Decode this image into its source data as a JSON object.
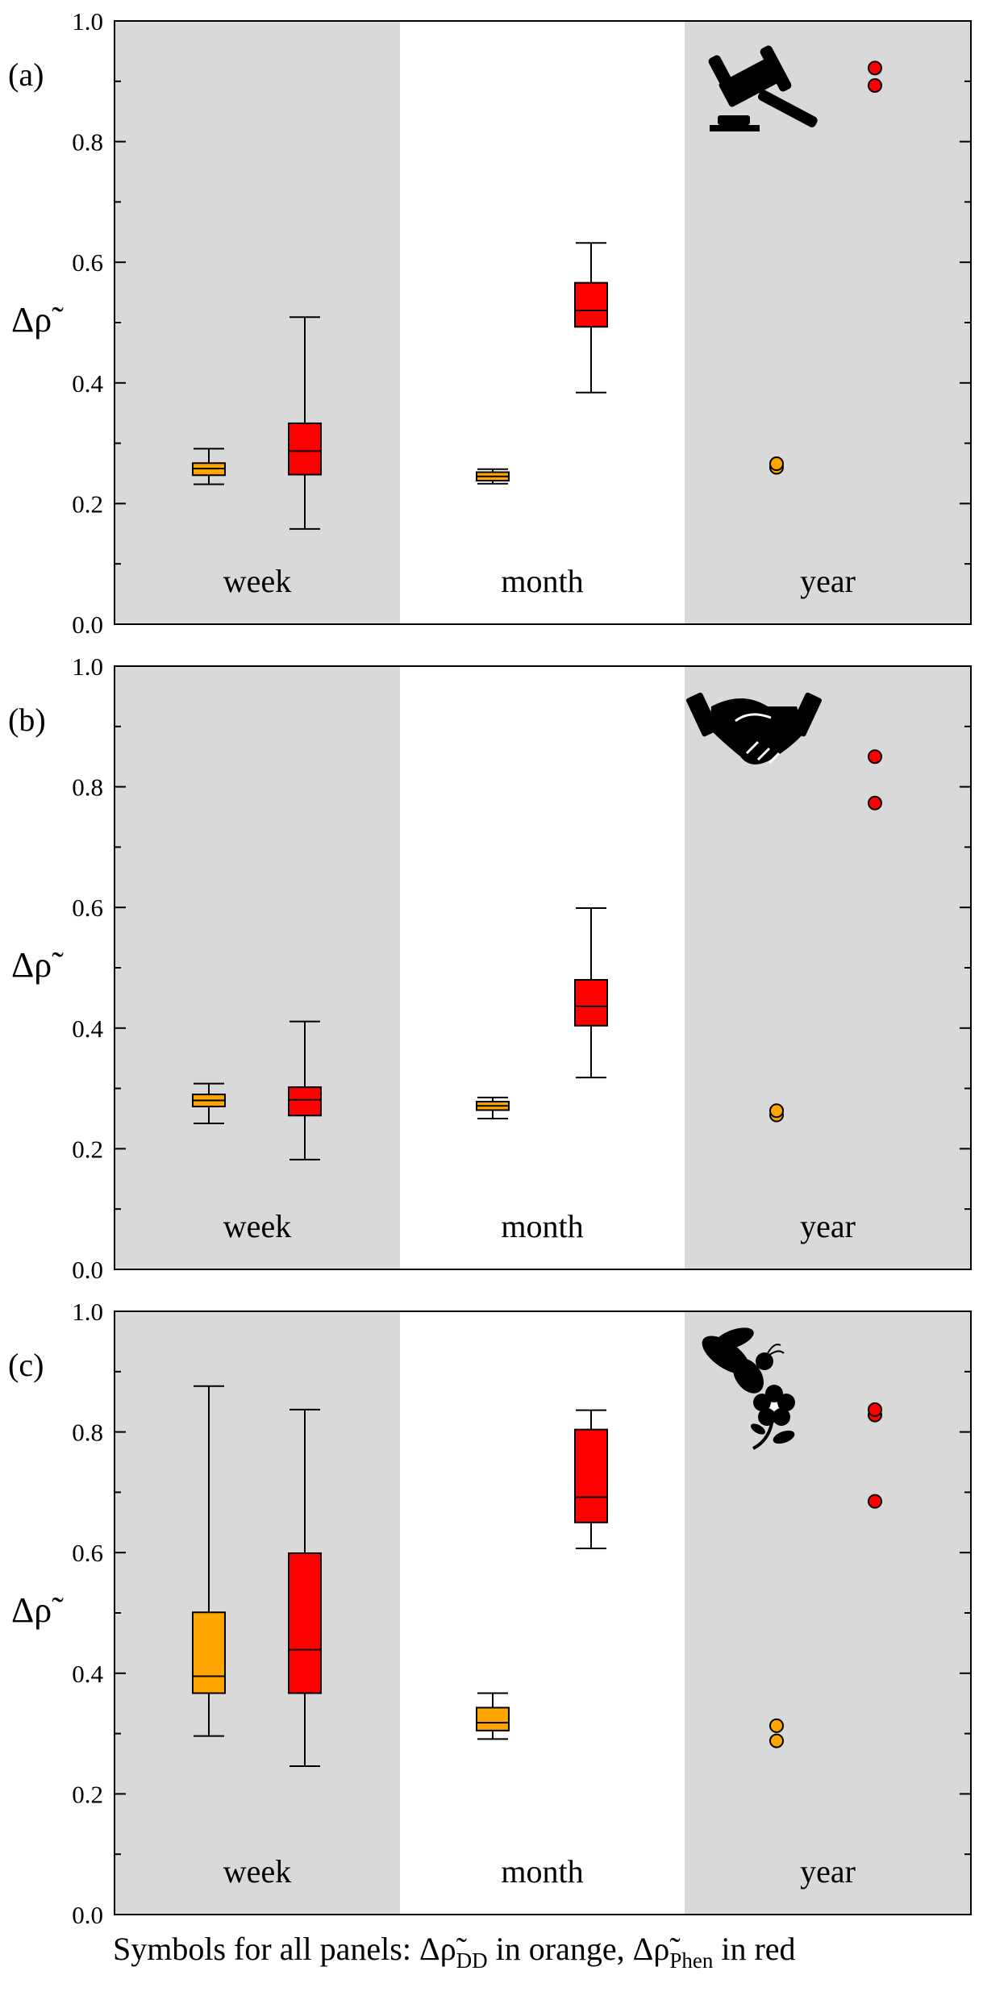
{
  "colors": {
    "dd": "#FFA500",
    "phen": "#FF0000",
    "shade": "#D9D9D9",
    "plot_bg": "#FFFFFF",
    "axis": "#000000"
  },
  "caption": {
    "prefix": "Symbols for all panels: ",
    "delta": "Δ",
    "rho": "ρ̃",
    "dd_sub": "DD",
    "dd_suffix": " in orange, ",
    "phen_sub": "Phen",
    "phen_suffix": " in red"
  },
  "chart_data": [
    {
      "type": "box",
      "panel_label": "(a)",
      "icon": "gavel-icon",
      "ylabel": "Δρ̃",
      "ylim": [
        0.0,
        1.0
      ],
      "yticks": [
        "0.0",
        "0.2",
        "0.4",
        "0.6",
        "0.8",
        "1.0"
      ],
      "categories": [
        "week",
        "month",
        "year"
      ],
      "series": [
        {
          "name": "Δρ̃_DD",
          "color_key": "dd",
          "boxes": [
            {
              "category": "week",
              "whislo": 0.232,
              "q1": 0.247,
              "med": 0.258,
              "q3": 0.267,
              "whishi": 0.291
            },
            {
              "category": "month",
              "whislo": 0.233,
              "q1": 0.238,
              "med": 0.245,
              "q3": 0.252,
              "whishi": 0.257
            }
          ],
          "points": [
            {
              "category": "year",
              "values": [
                0.26,
                0.266
              ]
            }
          ]
        },
        {
          "name": "Δρ̃_Phen",
          "color_key": "phen",
          "boxes": [
            {
              "category": "week",
              "whislo": 0.158,
              "q1": 0.248,
              "med": 0.287,
              "q3": 0.333,
              "whishi": 0.509
            },
            {
              "category": "month",
              "whislo": 0.384,
              "q1": 0.493,
              "med": 0.52,
              "q3": 0.566,
              "whishi": 0.632
            }
          ],
          "points": [
            {
              "category": "year",
              "values": [
                0.893,
                0.922
              ]
            }
          ]
        }
      ]
    },
    {
      "type": "box",
      "panel_label": "(b)",
      "icon": "handshake-icon",
      "ylabel": "Δρ̃",
      "ylim": [
        0.0,
        1.0
      ],
      "yticks": [
        "0.0",
        "0.2",
        "0.4",
        "0.6",
        "0.8",
        "1.0"
      ],
      "categories": [
        "week",
        "month",
        "year"
      ],
      "series": [
        {
          "name": "Δρ̃_DD",
          "color_key": "dd",
          "boxes": [
            {
              "category": "week",
              "whislo": 0.242,
              "q1": 0.27,
              "med": 0.28,
              "q3": 0.29,
              "whishi": 0.308
            },
            {
              "category": "month",
              "whislo": 0.25,
              "q1": 0.264,
              "med": 0.271,
              "q3": 0.278,
              "whishi": 0.285
            }
          ],
          "points": [
            {
              "category": "year",
              "values": [
                0.256,
                0.263
              ]
            }
          ]
        },
        {
          "name": "Δρ̃_Phen",
          "color_key": "phen",
          "boxes": [
            {
              "category": "week",
              "whislo": 0.182,
              "q1": 0.255,
              "med": 0.281,
              "q3": 0.302,
              "whishi": 0.411
            },
            {
              "category": "month",
              "whislo": 0.318,
              "q1": 0.404,
              "med": 0.436,
              "q3": 0.48,
              "whishi": 0.599
            }
          ],
          "points": [
            {
              "category": "year",
              "values": [
                0.773,
                0.85
              ]
            }
          ]
        }
      ]
    },
    {
      "type": "box",
      "panel_label": "(c)",
      "icon": "bee-flower-icon",
      "ylabel": "Δρ̃",
      "ylim": [
        0.0,
        1.0
      ],
      "yticks": [
        "0.0",
        "0.2",
        "0.4",
        "0.6",
        "0.8",
        "1.0"
      ],
      "categories": [
        "week",
        "month",
        "year"
      ],
      "series": [
        {
          "name": "Δρ̃_DD",
          "color_key": "dd",
          "boxes": [
            {
              "category": "week",
              "whislo": 0.296,
              "q1": 0.367,
              "med": 0.395,
              "q3": 0.501,
              "whishi": 0.876
            },
            {
              "category": "month",
              "whislo": 0.291,
              "q1": 0.305,
              "med": 0.318,
              "q3": 0.343,
              "whishi": 0.367
            }
          ],
          "points": [
            {
              "category": "year",
              "values": [
                0.288,
                0.313
              ]
            }
          ]
        },
        {
          "name": "Δρ̃_Phen",
          "color_key": "phen",
          "boxes": [
            {
              "category": "week",
              "whislo": 0.246,
              "q1": 0.367,
              "med": 0.439,
              "q3": 0.599,
              "whishi": 0.837
            },
            {
              "category": "month",
              "whislo": 0.607,
              "q1": 0.65,
              "med": 0.692,
              "q3": 0.804,
              "whishi": 0.836
            }
          ],
          "points": [
            {
              "category": "year",
              "values": [
                0.685,
                0.828,
                0.837
              ]
            }
          ]
        }
      ]
    }
  ]
}
